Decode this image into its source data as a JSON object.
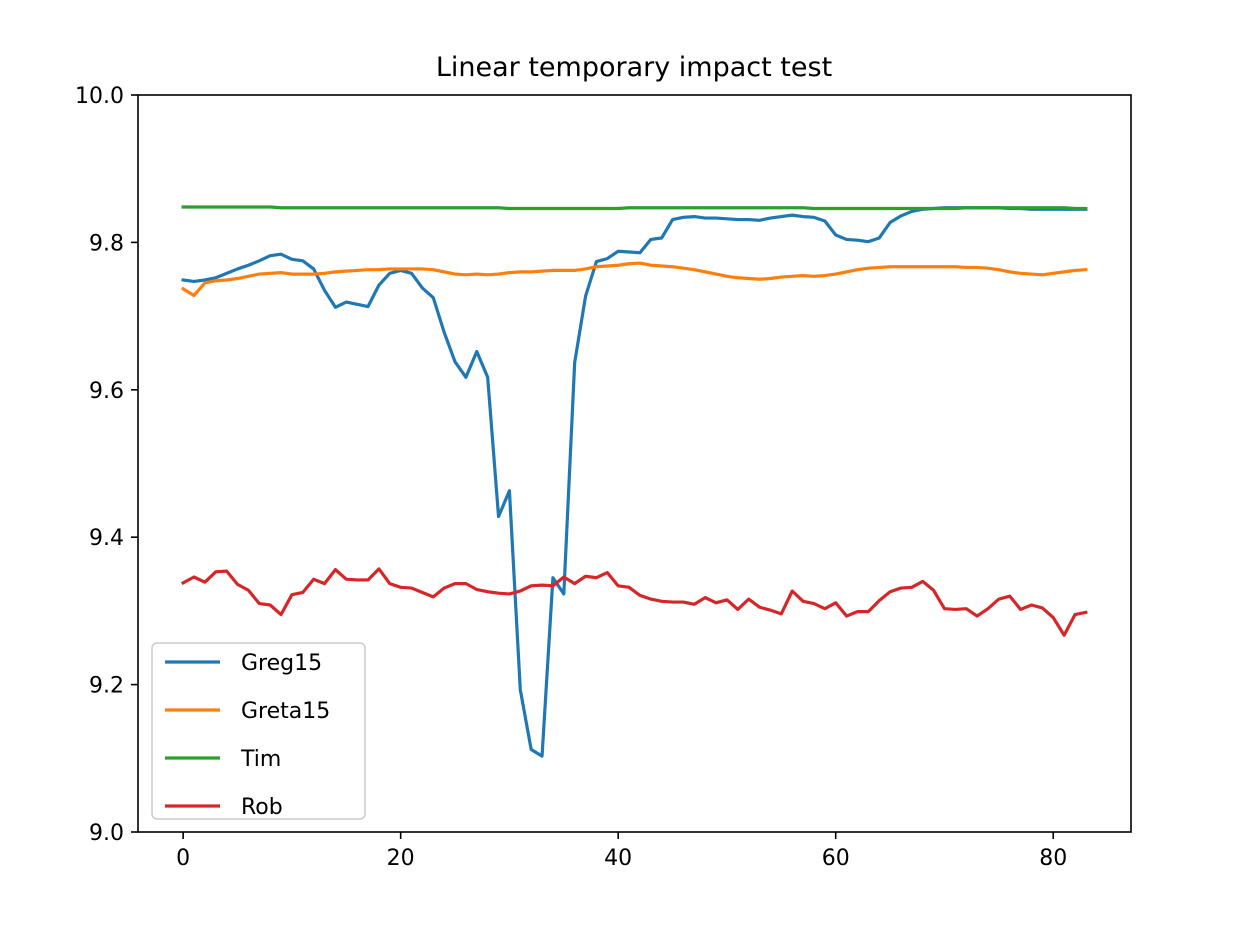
{
  "chart_data": {
    "type": "line",
    "title": "Linear temporary impact test",
    "xlabel": "",
    "ylabel": "",
    "xlim": [
      -4.15,
      87.15
    ],
    "ylim": [
      9.0,
      10.0
    ],
    "x_ticks": [
      0,
      20,
      40,
      60,
      80
    ],
    "y_ticks": [
      9.0,
      9.2,
      9.4,
      9.6,
      9.8,
      10.0
    ],
    "x_tick_labels": [
      "0",
      "20",
      "40",
      "60",
      "80"
    ],
    "y_tick_labels": [
      "9.0",
      "9.2",
      "9.4",
      "9.6",
      "9.8",
      "10.0"
    ],
    "grid": false,
    "legend_position": "lower-left",
    "series": [
      {
        "name": "Greg15",
        "color": "#1f77b4",
        "values": [
          9.749,
          9.747,
          9.749,
          9.752,
          9.758,
          9.764,
          9.769,
          9.775,
          9.782,
          9.784,
          9.777,
          9.775,
          9.764,
          9.735,
          9.712,
          9.719,
          9.716,
          9.713,
          9.742,
          9.758,
          9.762,
          9.758,
          9.738,
          9.725,
          9.678,
          9.638,
          9.617,
          9.652,
          9.617,
          9.428,
          9.463,
          9.193,
          9.112,
          9.103,
          9.345,
          9.323,
          9.637,
          9.727,
          9.774,
          9.778,
          9.788,
          9.787,
          9.786,
          9.804,
          9.806,
          9.831,
          9.834,
          9.835,
          9.833,
          9.833,
          9.832,
          9.831,
          9.831,
          9.83,
          9.833,
          9.835,
          9.837,
          9.835,
          9.834,
          9.829,
          9.81,
          9.804,
          9.803,
          9.801,
          9.806,
          9.827,
          9.836,
          9.842,
          9.845,
          9.846,
          9.847,
          9.847,
          9.847,
          9.847,
          9.847,
          9.847,
          9.846,
          9.846,
          9.845,
          9.845,
          9.845,
          9.845,
          9.845,
          9.845
        ]
      },
      {
        "name": "Greta15",
        "color": "#ff7f0e",
        "values": [
          9.737,
          9.728,
          9.745,
          9.748,
          9.749,
          9.751,
          9.754,
          9.757,
          9.758,
          9.759,
          9.757,
          9.757,
          9.757,
          9.758,
          9.76,
          9.761,
          9.762,
          9.763,
          9.763,
          9.764,
          9.764,
          9.764,
          9.764,
          9.763,
          9.76,
          9.757,
          9.756,
          9.757,
          9.756,
          9.757,
          9.759,
          9.76,
          9.76,
          9.761,
          9.762,
          9.762,
          9.762,
          9.764,
          9.767,
          9.768,
          9.769,
          9.771,
          9.772,
          9.769,
          9.768,
          9.767,
          9.765,
          9.763,
          9.76,
          9.757,
          9.754,
          9.752,
          9.751,
          9.75,
          9.751,
          9.753,
          9.754,
          9.755,
          9.754,
          9.755,
          9.757,
          9.76,
          9.763,
          9.765,
          9.766,
          9.767,
          9.767,
          9.767,
          9.767,
          9.767,
          9.767,
          9.767,
          9.766,
          9.766,
          9.765,
          9.763,
          9.76,
          9.758,
          9.757,
          9.756,
          9.758,
          9.76,
          9.762,
          9.763
        ]
      },
      {
        "name": "Tim",
        "color": "#2ca02c",
        "values": [
          9.848,
          9.848,
          9.848,
          9.848,
          9.848,
          9.848,
          9.848,
          9.848,
          9.848,
          9.847,
          9.847,
          9.847,
          9.847,
          9.847,
          9.847,
          9.847,
          9.847,
          9.847,
          9.847,
          9.847,
          9.847,
          9.847,
          9.847,
          9.847,
          9.847,
          9.847,
          9.847,
          9.847,
          9.847,
          9.847,
          9.846,
          9.846,
          9.846,
          9.846,
          9.846,
          9.846,
          9.846,
          9.846,
          9.846,
          9.846,
          9.846,
          9.847,
          9.847,
          9.847,
          9.847,
          9.847,
          9.847,
          9.847,
          9.847,
          9.847,
          9.847,
          9.847,
          9.847,
          9.847,
          9.847,
          9.847,
          9.847,
          9.847,
          9.846,
          9.846,
          9.846,
          9.846,
          9.846,
          9.846,
          9.846,
          9.846,
          9.846,
          9.846,
          9.846,
          9.846,
          9.846,
          9.846,
          9.847,
          9.847,
          9.847,
          9.847,
          9.847,
          9.847,
          9.847,
          9.847,
          9.847,
          9.847,
          9.846,
          9.846
        ]
      },
      {
        "name": "Rob",
        "color": "#d62728",
        "values": [
          9.338,
          9.346,
          9.339,
          9.353,
          9.354,
          9.336,
          9.328,
          9.31,
          9.308,
          9.295,
          9.322,
          9.325,
          9.343,
          9.337,
          9.356,
          9.343,
          9.342,
          9.342,
          9.357,
          9.337,
          9.332,
          9.331,
          9.325,
          9.319,
          9.331,
          9.337,
          9.337,
          9.329,
          9.326,
          9.324,
          9.323,
          9.327,
          9.334,
          9.335,
          9.334,
          9.346,
          9.337,
          9.347,
          9.345,
          9.352,
          9.334,
          9.332,
          9.321,
          9.316,
          9.313,
          9.312,
          9.312,
          9.309,
          9.318,
          9.311,
          9.315,
          9.302,
          9.316,
          9.305,
          9.301,
          9.296,
          9.327,
          9.313,
          9.31,
          9.303,
          9.311,
          9.293,
          9.299,
          9.299,
          9.314,
          9.326,
          9.331,
          9.332,
          9.34,
          9.328,
          9.303,
          9.302,
          9.303,
          9.293,
          9.303,
          9.316,
          9.32,
          9.302,
          9.308,
          9.304,
          9.291,
          9.267,
          9.295,
          9.298
        ]
      }
    ]
  }
}
